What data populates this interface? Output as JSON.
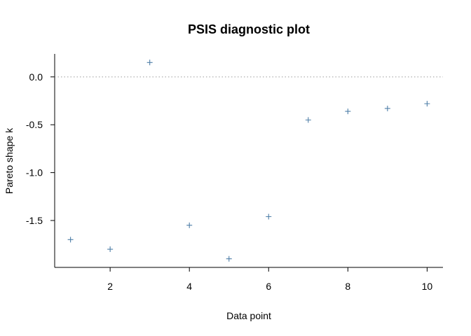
{
  "chart_data": {
    "type": "scatter",
    "title": "PSIS diagnostic plot",
    "xlabel": "Data point",
    "ylabel": "Pareto shape k",
    "x": [
      1,
      2,
      3,
      4,
      5,
      6,
      7,
      8,
      9,
      10
    ],
    "y": [
      -1.7,
      -1.8,
      0.15,
      -1.55,
      -1.9,
      -1.46,
      -0.45,
      -0.36,
      -0.33,
      -0.28
    ],
    "xlim": [
      0.6,
      10.4
    ],
    "ylim": [
      -1.99,
      0.24
    ],
    "xticks": [
      2,
      4,
      6,
      8,
      10
    ],
    "xtick_labels": [
      "2",
      "4",
      "6",
      "8",
      "10"
    ],
    "yticks": [
      0.0,
      -0.5,
      -1.0,
      -1.5
    ],
    "ytick_labels": [
      "0.0",
      "-0.5",
      "-1.0",
      "-1.5"
    ],
    "reference_line": {
      "y": 0.0,
      "style": "dotted"
    },
    "marker": "plus",
    "marker_color": "#4f7fa8",
    "grid": false
  }
}
